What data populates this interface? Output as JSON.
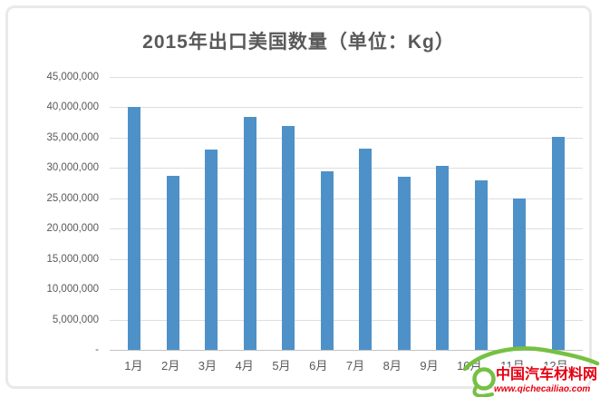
{
  "window": {
    "background": "#ffffff",
    "card_border_color": "#e9e9e9"
  },
  "chart_data": {
    "type": "bar",
    "title": "2015年出口美国数量（单位：Kg）",
    "categories": [
      "1月",
      "2月",
      "3月",
      "4月",
      "5月",
      "6月",
      "7月",
      "8月",
      "9月",
      "10月",
      "11月",
      "12月"
    ],
    "values": [
      40000000,
      28700000,
      33000000,
      38400000,
      37000000,
      29500000,
      33200000,
      28600000,
      30300000,
      28000000,
      25000000,
      35200000
    ],
    "xlabel": "",
    "ylabel": "",
    "ylim": [
      0,
      45000000
    ],
    "ytick_step": 5000000,
    "ytick_labels_top_to_bottom": [
      "45,000,000",
      "40,000,000",
      "35,000,000",
      "30,000,000",
      "25,000,000",
      "20,000,000",
      "15,000,000",
      "10,000,000",
      "5,000,000",
      "-"
    ],
    "grid": true,
    "legend": "none",
    "bar_color": "#4e91c8",
    "gridline_color": "#dedede",
    "axis_line_color": "#c4c4c4",
    "text_color": "#595959",
    "title_color": "#595959"
  },
  "watermark": {
    "site_name": "中国汽车材料网",
    "site_url": "www.qichecailiao.com",
    "green": "#76c043",
    "red": "#e60012"
  }
}
